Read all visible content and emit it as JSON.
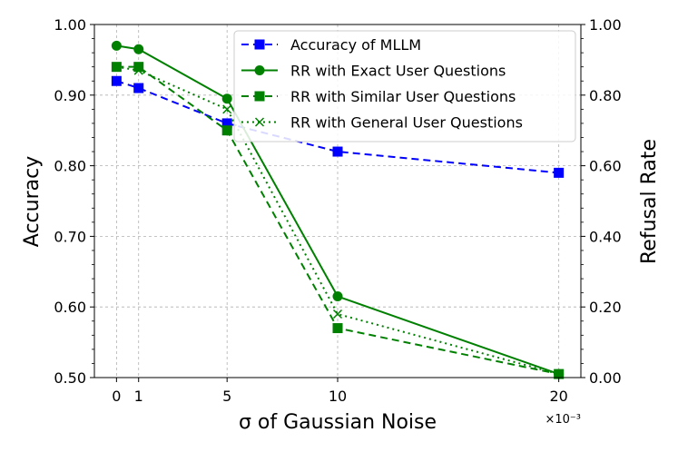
{
  "chart_data": {
    "type": "line",
    "xlabel": "σ of Gaussian Noise",
    "x_multiplier": "×10⁻³",
    "ylabel": "Accuracy",
    "y2label": "Refusal Rate",
    "x": [
      0,
      1,
      5,
      10,
      20
    ],
    "x_tick_labels": [
      "0",
      "1",
      "5",
      "10",
      "20"
    ],
    "xlim": [
      -1,
      21
    ],
    "ylim": [
      0.5,
      1.0
    ],
    "y_ticks": [
      "0.50",
      "0.60",
      "0.70",
      "0.80",
      "0.90",
      "1.00"
    ],
    "y2lim": [
      0.0,
      1.0
    ],
    "y2_ticks": [
      "0.00",
      "0.20",
      "0.40",
      "0.60",
      "0.80",
      "1.00"
    ],
    "grid": true,
    "legend_position": "top-right",
    "series": [
      {
        "name": "Accuracy of MLLM",
        "axis": "left",
        "values": [
          0.92,
          0.91,
          0.86,
          0.82,
          0.79
        ],
        "color": "#0000ff",
        "dash": "8,5",
        "marker": "square"
      },
      {
        "name": "RR with Exact User Questions",
        "axis": "right",
        "values": [
          0.94,
          0.93,
          0.79,
          0.23,
          0.01
        ],
        "color": "#008000",
        "dash": "",
        "marker": "circle"
      },
      {
        "name": "RR with Similar User Questions",
        "axis": "right",
        "values": [
          0.88,
          0.88,
          0.7,
          0.14,
          0.01
        ],
        "color": "#008000",
        "dash": "8,5",
        "marker": "square"
      },
      {
        "name": "RR with General User Questions",
        "axis": "right",
        "values": [
          0.88,
          0.87,
          0.76,
          0.18,
          0.01
        ],
        "color": "#008000",
        "dash": "2,4",
        "marker": "x"
      }
    ]
  }
}
